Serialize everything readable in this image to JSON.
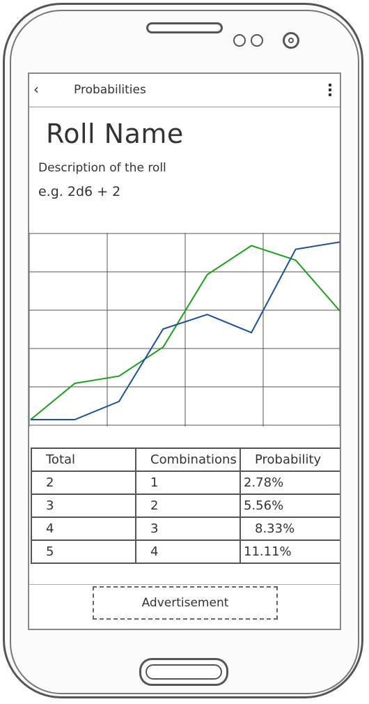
{
  "appbar": {
    "back_icon": "chevron-left-icon",
    "back_glyph": "‹",
    "title": "Probabilities",
    "overflow_icon": "more-vertical-icon"
  },
  "roll": {
    "name": "Roll Name",
    "description": "Description of the roll",
    "example": "e.g. 2d6 + 2"
  },
  "chart_data": {
    "type": "line",
    "x": [
      0,
      1,
      2,
      3,
      4,
      5,
      6,
      7
    ],
    "ylim": [
      0,
      5
    ],
    "grid": true,
    "series": [
      {
        "color": "#1aa01a",
        "values": [
          0.0,
          1.0,
          1.2,
          2.0,
          4.0,
          4.8,
          4.4,
          3.0
        ]
      },
      {
        "color": "#1a4fa0",
        "values": [
          0.0,
          0.0,
          0.5,
          2.5,
          2.9,
          2.4,
          4.7,
          4.9
        ]
      }
    ]
  },
  "table": {
    "headers": [
      "Total",
      "Combinations",
      "Probability"
    ],
    "rows": [
      [
        "2",
        "1",
        "2.78%"
      ],
      [
        "3",
        "2",
        "5.56%"
      ],
      [
        "4",
        "3",
        "8.33%"
      ],
      [
        "5",
        "4",
        "11.11%"
      ]
    ]
  },
  "ad": {
    "label": "Advertisement"
  }
}
